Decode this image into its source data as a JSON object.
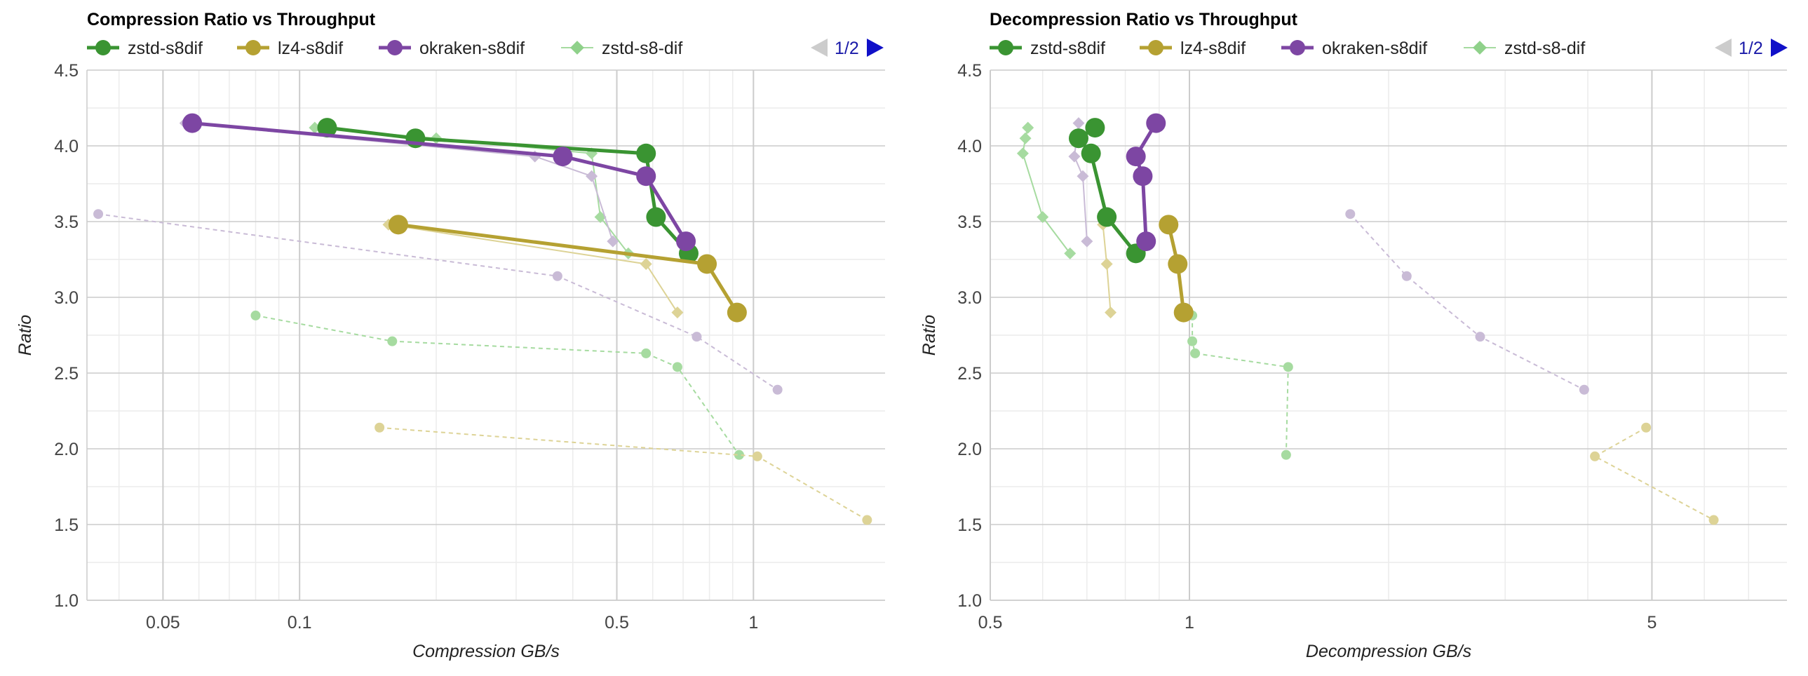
{
  "pager": {
    "label": "1/2"
  },
  "chart_data": [
    {
      "type": "scatter",
      "title": "Compression Ratio vs Throughput",
      "xlabel": "Compression GB/s",
      "ylabel": "Ratio",
      "xscale": "log",
      "xlim": [
        0.034,
        1.95
      ],
      "ylim": [
        1.0,
        4.5
      ],
      "xticks": [
        0.05,
        0.1,
        0.5,
        1
      ],
      "xtick_labels": [
        "0.05",
        "0.1",
        "0.5",
        "1"
      ],
      "yticks": [
        1.0,
        1.5,
        2.0,
        2.5,
        3.0,
        3.5,
        4.0,
        4.5
      ],
      "ytick_labels": [
        "1.0",
        "1.5",
        "2.0",
        "2.5",
        "3.0",
        "3.5",
        "4.0",
        "4.5"
      ],
      "legend_position": "top",
      "legend": [
        {
          "name": "zstd-s8dif",
          "color": "#3a9432",
          "marker": "circle"
        },
        {
          "name": "lz4-s8dif",
          "color": "#b5a132",
          "marker": "circle"
        },
        {
          "name": "okraken-s8dif",
          "color": "#7d46a3",
          "marker": "circle"
        },
        {
          "name": "zstd-s8-dif",
          "color": "#8fd18a",
          "marker": "diamond"
        }
      ],
      "series": [
        {
          "name": "zstd-s8dif",
          "color": "#3a9432",
          "style": "bold",
          "marker": "circle",
          "x": [
            0.115,
            0.18,
            0.58,
            0.61,
            0.72
          ],
          "y": [
            4.12,
            4.05,
            3.95,
            3.53,
            3.29
          ]
        },
        {
          "name": "lz4-s8dif",
          "color": "#b5a132",
          "style": "bold",
          "marker": "circle",
          "x": [
            0.165,
            0.79,
            0.92
          ],
          "y": [
            3.48,
            3.22,
            2.9
          ]
        },
        {
          "name": "okraken-s8dif",
          "color": "#7d46a3",
          "style": "bold",
          "marker": "circle",
          "x": [
            0.058,
            0.38,
            0.58,
            0.71
          ],
          "y": [
            4.15,
            3.93,
            3.8,
            3.37
          ]
        },
        {
          "color": "#a6dba0",
          "style": "thin",
          "marker": "diamond",
          "x": [
            0.108,
            0.2,
            0.44,
            0.46,
            0.53
          ],
          "y": [
            4.12,
            4.05,
            3.95,
            3.53,
            3.29
          ]
        },
        {
          "color": "#ddd396",
          "style": "thin",
          "marker": "diamond",
          "x": [
            0.157,
            0.58,
            0.68
          ],
          "y": [
            3.48,
            3.22,
            2.9
          ]
        },
        {
          "color": "#c9bbd6",
          "style": "thin",
          "marker": "diamond",
          "x": [
            0.056,
            0.33,
            0.44,
            0.49
          ],
          "y": [
            4.15,
            3.93,
            3.8,
            3.37
          ]
        },
        {
          "color": "#c9bbd6",
          "style": "dashed",
          "marker": "dot",
          "x": [
            0.036,
            0.37,
            0.75,
            1.13
          ],
          "y": [
            3.55,
            3.14,
            2.74,
            2.39
          ]
        },
        {
          "color": "#a6dba0",
          "style": "dashed",
          "marker": "dot",
          "x": [
            0.08,
            0.16,
            0.58,
            0.68,
            0.93
          ],
          "y": [
            2.88,
            2.71,
            2.63,
            2.54,
            1.96
          ]
        },
        {
          "color": "#ddd396",
          "style": "dashed",
          "marker": "dot",
          "x": [
            0.15,
            1.02,
            1.78
          ],
          "y": [
            2.14,
            1.95,
            1.53
          ]
        }
      ]
    },
    {
      "type": "scatter",
      "title": "Decompression Ratio vs Throughput",
      "xlabel": "Decompression GB/s",
      "ylabel": "Ratio",
      "xscale": "log",
      "xlim": [
        0.5,
        8.0
      ],
      "ylim": [
        1.0,
        4.5
      ],
      "xticks": [
        0.5,
        1,
        5
      ],
      "xtick_labels": [
        "0.5",
        "1",
        "5"
      ],
      "yticks": [
        1.0,
        1.5,
        2.0,
        2.5,
        3.0,
        3.5,
        4.0,
        4.5
      ],
      "ytick_labels": [
        "1.0",
        "1.5",
        "2.0",
        "2.5",
        "3.0",
        "3.5",
        "4.0",
        "4.5"
      ],
      "legend_position": "top",
      "legend": [
        {
          "name": "zstd-s8dif",
          "color": "#3a9432",
          "marker": "circle"
        },
        {
          "name": "lz4-s8dif",
          "color": "#b5a132",
          "marker": "circle"
        },
        {
          "name": "okraken-s8dif",
          "color": "#7d46a3",
          "marker": "circle"
        },
        {
          "name": "zstd-s8-dif",
          "color": "#8fd18a",
          "marker": "diamond"
        }
      ],
      "series": [
        {
          "name": "zstd-s8dif",
          "color": "#3a9432",
          "style": "bold",
          "marker": "circle",
          "x": [
            0.72,
            0.68,
            0.71,
            0.75,
            0.83
          ],
          "y": [
            4.12,
            4.05,
            3.95,
            3.53,
            3.29
          ]
        },
        {
          "name": "lz4-s8dif",
          "color": "#b5a132",
          "style": "bold",
          "marker": "circle",
          "x": [
            0.93,
            0.96,
            0.98
          ],
          "y": [
            3.48,
            3.22,
            2.9
          ]
        },
        {
          "name": "okraken-s8dif",
          "color": "#7d46a3",
          "style": "bold",
          "marker": "circle",
          "x": [
            0.89,
            0.83,
            0.85,
            0.86
          ],
          "y": [
            4.15,
            3.93,
            3.8,
            3.37
          ]
        },
        {
          "color": "#a6dba0",
          "style": "thin",
          "marker": "diamond",
          "x": [
            0.57,
            0.565,
            0.56,
            0.6,
            0.66
          ],
          "y": [
            4.12,
            4.05,
            3.95,
            3.53,
            3.29
          ]
        },
        {
          "color": "#ddd396",
          "style": "thin",
          "marker": "diamond",
          "x": [
            0.74,
            0.75,
            0.76
          ],
          "y": [
            3.48,
            3.22,
            2.9
          ]
        },
        {
          "color": "#c9bbd6",
          "style": "thin",
          "marker": "diamond",
          "x": [
            0.68,
            0.67,
            0.69,
            0.7
          ],
          "y": [
            4.15,
            3.93,
            3.8,
            3.37
          ]
        },
        {
          "color": "#c9bbd6",
          "style": "dashed",
          "marker": "dot",
          "x": [
            1.75,
            2.13,
            2.75,
            3.95
          ],
          "y": [
            3.55,
            3.14,
            2.74,
            2.39
          ]
        },
        {
          "color": "#a6dba0",
          "style": "dashed",
          "marker": "dot",
          "x": [
            1.01,
            1.01,
            1.02,
            1.41,
            1.4
          ],
          "y": [
            2.88,
            2.71,
            2.63,
            2.54,
            1.96
          ]
        },
        {
          "color": "#ddd396",
          "style": "dashed",
          "marker": "dot",
          "x": [
            4.9,
            4.1,
            6.2
          ],
          "y": [
            2.14,
            1.95,
            1.53
          ]
        }
      ]
    }
  ]
}
